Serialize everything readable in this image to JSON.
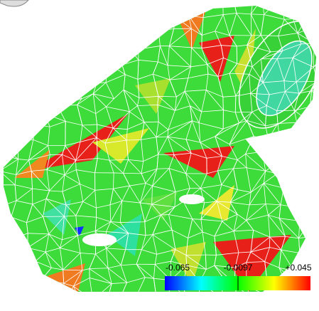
{
  "colorbar": {
    "labels": [
      "-0.065",
      "-0.0097",
      "+0.045"
    ]
  }
}
